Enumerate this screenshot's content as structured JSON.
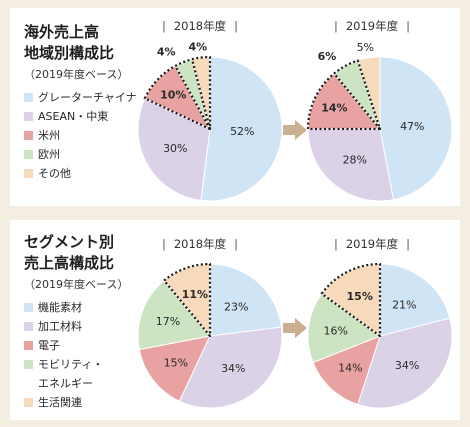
{
  "colors": {
    "greater_china": "#cfe4f5",
    "asean_china_east": "#dcd2e8",
    "americas": "#e8a2a2",
    "europe": "#cde4c3",
    "other": "#f7d9bb",
    "arrow": "#c9b091",
    "background": "#f3ede2"
  },
  "chart_data": [
    {
      "type": "pie",
      "title": "海外売上高\n地域別構成比",
      "title_lines": [
        "海外売上高",
        "地域別構成比"
      ],
      "subtitle": "（2019年度ベース）",
      "legend": [
        "グレーターチャイナ",
        "ASEAN・中東",
        "米州",
        "欧州",
        "その他"
      ],
      "legend_colors": [
        "#cfe4f5",
        "#dcd2e8",
        "#e8a2a2",
        "#cde4c3",
        "#f7d9bb"
      ],
      "legend_placement": "left",
      "pies": [
        {
          "name": "2018年度",
          "values": [
            52,
            30,
            10,
            4,
            4
          ],
          "labels": [
            "52%",
            "30%",
            "10%",
            "4%",
            "4%"
          ],
          "highlighted": [
            false,
            false,
            true,
            true,
            true
          ]
        },
        {
          "name": "2019年度",
          "values": [
            47,
            28,
            14,
            6,
            5
          ],
          "labels": [
            "47%",
            "28%",
            "14%",
            "6%",
            "5%"
          ],
          "highlighted": [
            false,
            false,
            true,
            true,
            false
          ]
        }
      ]
    },
    {
      "type": "pie",
      "title": "セグメント別\n売上高構成比",
      "title_lines": [
        "セグメント別",
        "売上高構成比"
      ],
      "subtitle": "（2019年度ベース）",
      "legend": [
        "機能素材",
        "加工材料",
        "電子",
        "モビリティ・\nエネルギー",
        "生活関連"
      ],
      "legend_lines": [
        [
          "機能素材"
        ],
        [
          "加工材料"
        ],
        [
          "電子"
        ],
        [
          "モビリティ・",
          "エネルギー"
        ],
        [
          "生活関連"
        ]
      ],
      "legend_colors": [
        "#cfe4f5",
        "#dcd2e8",
        "#e8a2a2",
        "#cde4c3",
        "#f7d9bb"
      ],
      "legend_placement": "left",
      "pies": [
        {
          "name": "2018年度",
          "values": [
            23,
            34,
            15,
            17,
            11
          ],
          "labels": [
            "23%",
            "34%",
            "15%",
            "17%",
            "11%"
          ],
          "highlighted": [
            false,
            false,
            false,
            false,
            true
          ]
        },
        {
          "name": "2019年度",
          "values": [
            21,
            34,
            14,
            16,
            15
          ],
          "labels": [
            "21%",
            "34%",
            "14%",
            "16%",
            "15%"
          ],
          "highlighted": [
            false,
            false,
            false,
            false,
            true
          ]
        }
      ]
    }
  ]
}
